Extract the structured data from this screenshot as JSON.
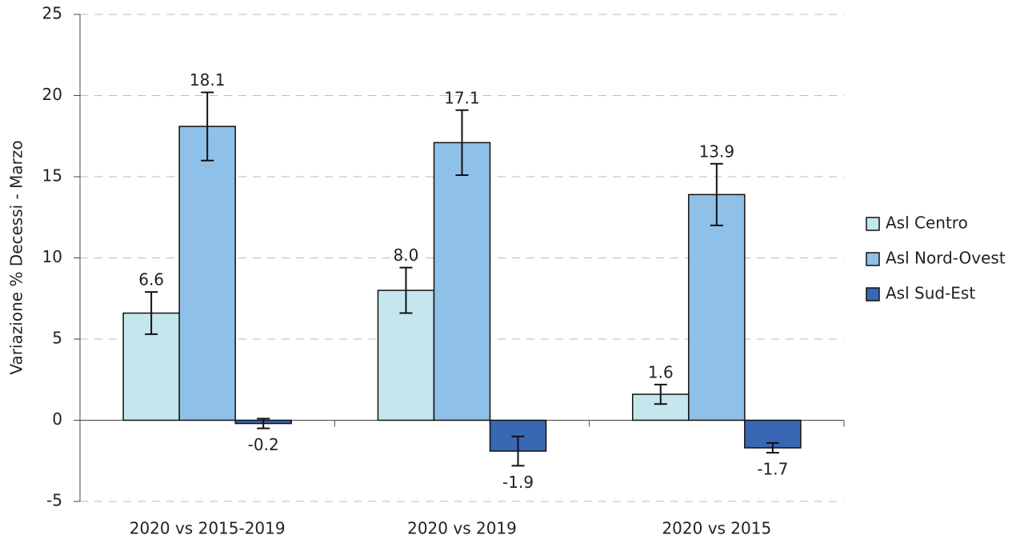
{
  "chart_data": {
    "type": "bar",
    "y_label": "Variazione % Decessi - Marzo",
    "categories": [
      "2020 vs 2015-2019",
      "2020 vs 2019",
      "2020 vs 2015"
    ],
    "series": [
      {
        "name": "Asl Centro",
        "color": "#c5e6ed",
        "values": [
          6.6,
          8.0,
          1.6
        ],
        "value_labels": [
          "6.6",
          "8.0",
          "1.6"
        ],
        "errors": [
          1.3,
          1.4,
          0.6
        ]
      },
      {
        "name": "Asl Nord-Ovest",
        "color": "#8fc0e8",
        "values": [
          18.1,
          17.1,
          13.9
        ],
        "value_labels": [
          "18.1",
          "17.1",
          "13.9"
        ],
        "errors": [
          2.1,
          2.0,
          1.9
        ]
      },
      {
        "name": "Asl Sud-Est",
        "color": "#3a67b4",
        "values": [
          -0.2,
          -1.9,
          -1.7
        ],
        "value_labels": [
          "-0.2",
          "-1.9",
          "-1.7"
        ],
        "errors": [
          0.3,
          0.9,
          0.3
        ]
      }
    ],
    "ylim": [
      -5,
      25
    ],
    "yticks": [
      -5,
      0,
      5,
      10,
      15,
      20,
      25
    ],
    "grid": true,
    "legend": "right"
  }
}
